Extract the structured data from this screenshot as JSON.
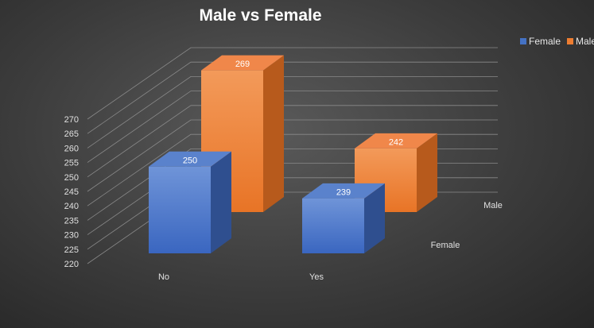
{
  "chart_data": {
    "type": "bar",
    "title": "Male vs Female",
    "categories": [
      "No",
      "Yes"
    ],
    "depth_labels": [
      "Female",
      "Male"
    ],
    "series": [
      {
        "name": "Female",
        "color": "#4472C4",
        "values": [
          250,
          239
        ]
      },
      {
        "name": "Male",
        "color": "#ED7D31",
        "values": [
          269,
          242
        ]
      }
    ],
    "ylim": [
      220,
      270
    ],
    "yticks": [
      220,
      225,
      230,
      235,
      240,
      245,
      250,
      255,
      260,
      265,
      270
    ],
    "grid": true,
    "legend_position": "top-right"
  }
}
